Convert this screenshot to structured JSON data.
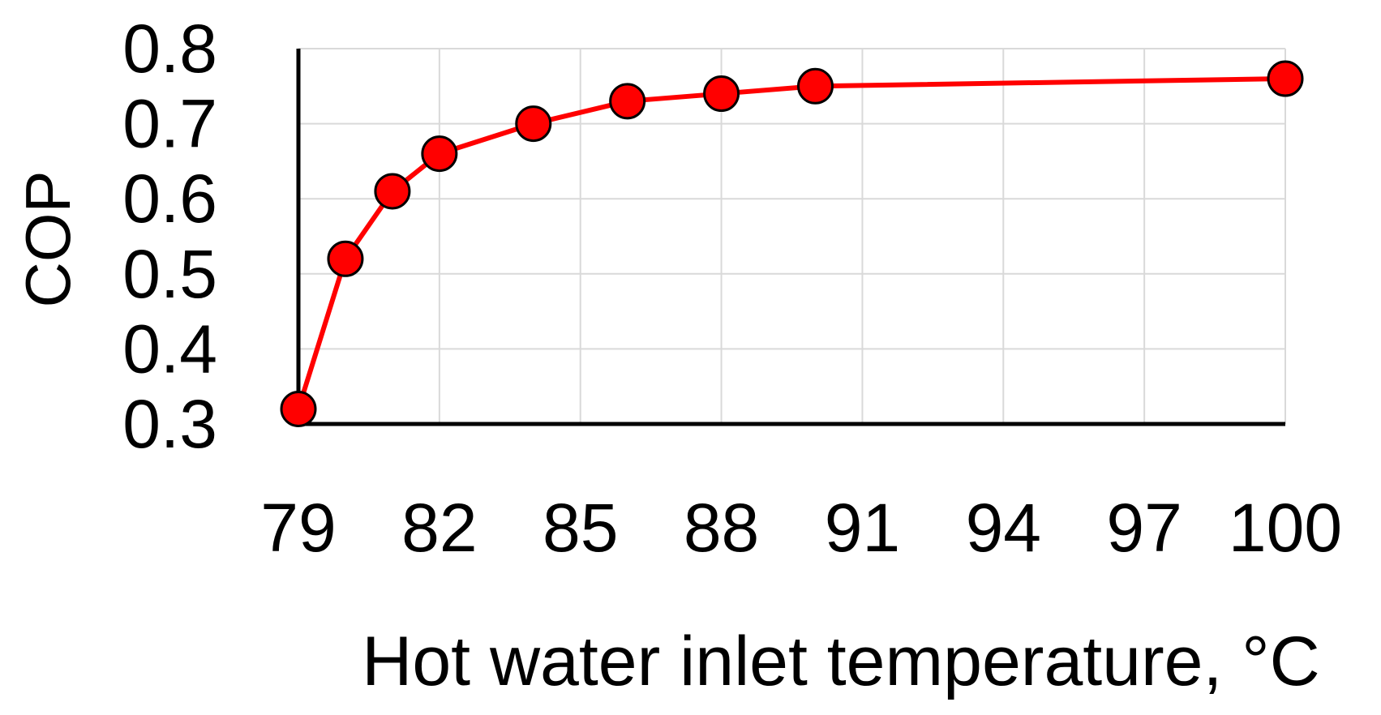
{
  "chart_data": {
    "type": "line",
    "title": "",
    "xlabel": "Hot water inlet temperature, °C",
    "ylabel": "COP",
    "xlim": [
      79,
      100
    ],
    "ylim": [
      0.3,
      0.8
    ],
    "x_ticks": [
      79,
      82,
      85,
      88,
      91,
      94,
      97,
      100
    ],
    "y_ticks": [
      0.3,
      0.4,
      0.5,
      0.6,
      0.7,
      0.8
    ],
    "x_tick_labels": [
      "79",
      "82",
      "85",
      "88",
      "91",
      "94",
      "97",
      "100"
    ],
    "y_tick_labels": [
      "0.3",
      "0.4",
      "0.5",
      "0.6",
      "0.7",
      "0.8"
    ],
    "grid": true,
    "legend": "none",
    "series": [
      {
        "color": "#ff0000",
        "marker": "circle",
        "marker_edge_color": "#000000",
        "x": [
          79,
          80,
          81,
          82,
          84,
          86,
          88,
          90,
          100
        ],
        "y": [
          0.32,
          0.52,
          0.61,
          0.66,
          0.7,
          0.73,
          0.74,
          0.75,
          0.76
        ]
      }
    ]
  }
}
